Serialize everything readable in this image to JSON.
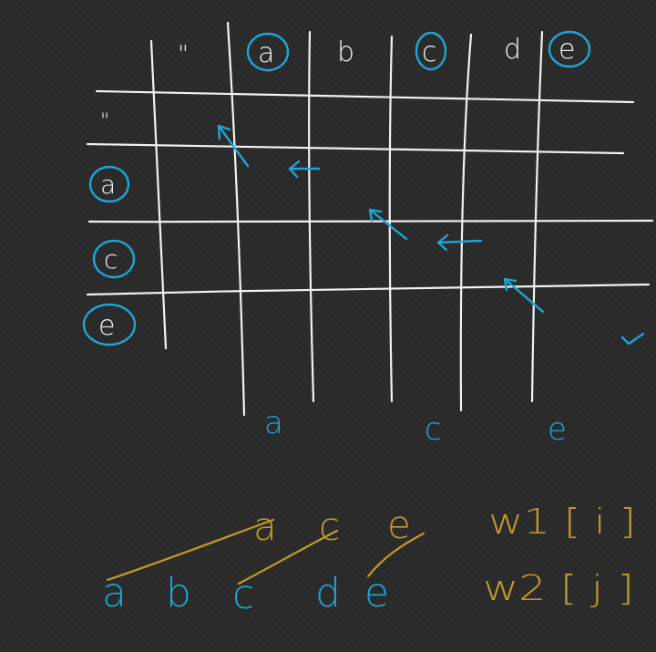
{
  "table": {
    "corner_quote": "\"",
    "col_headers": [
      {
        "label": "a",
        "circled": true
      },
      {
        "label": "b",
        "circled": false
      },
      {
        "label": "c",
        "circled": true
      },
      {
        "label": "d",
        "circled": false
      },
      {
        "label": "e",
        "circled": true
      }
    ],
    "row_headers": [
      {
        "label": "\"",
        "circled": false
      },
      {
        "label": "a",
        "circled": true
      },
      {
        "label": "c",
        "circled": true
      },
      {
        "label": "e",
        "circled": true
      }
    ]
  },
  "result_letters": [
    "a",
    "c",
    "e"
  ],
  "comparison": {
    "word1_letters": [
      "a",
      "c",
      "e"
    ],
    "word2_letters": [
      "a",
      "b",
      "c",
      "d",
      "e"
    ],
    "word1_index_label": "w1 [ i ]",
    "word2_index_label": "w2 [ j ]"
  },
  "colors": {
    "background": "#2b2b2b",
    "grid": "#f2f2f2",
    "highlight_blue": "#1ea5d6",
    "annotation_gold": "#c29a2a"
  }
}
